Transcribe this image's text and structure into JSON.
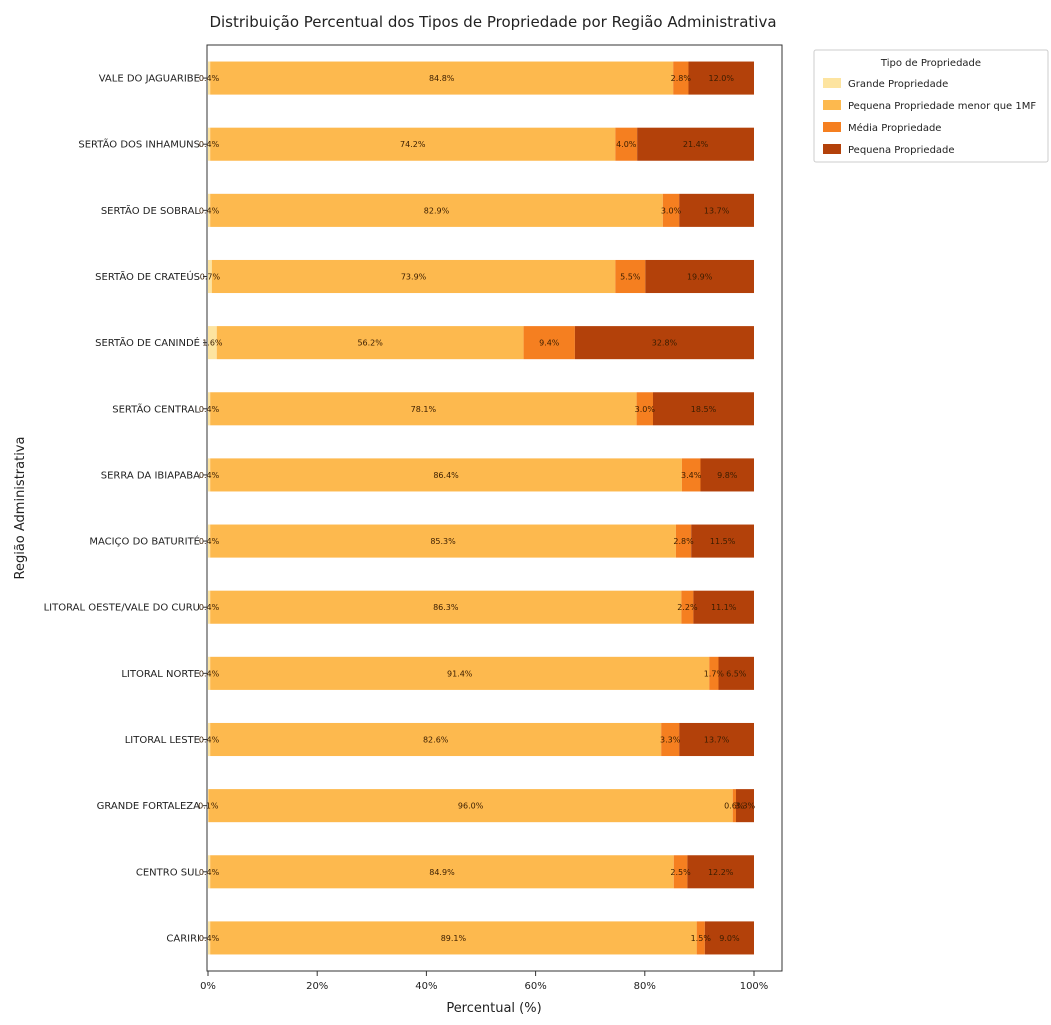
{
  "chart_data": {
    "type": "bar",
    "orientation": "horizontal",
    "stacked": true,
    "title": "Distribuição Percentual dos Tipos de Propriedade por Região Administrativa",
    "xlabel": "Percentual (%)",
    "ylabel": "Região Administrativa",
    "xlim": [
      0,
      100
    ],
    "xticks": [
      "0%",
      "20%",
      "40%",
      "60%",
      "80%",
      "100%"
    ],
    "grid": false,
    "legend": {
      "title": "Tipo de Propriedade",
      "placement": "outside-top-right"
    },
    "categories": [
      "VALE DO JAGUARIBE",
      "SERTÃO DOS INHAMUNS",
      "SERTÃO DE SOBRAL",
      "SERTÃO DE CRATEÚS",
      "SERTÃO DE CANINDÉ",
      "SERTÃO CENTRAL",
      "SERRA DA IBIAPABA",
      "MACIÇO DO BATURITÉ",
      "LITORAL OESTE/VALE DO CURU",
      "LITORAL NORTE",
      "LITORAL LESTE",
      "GRANDE FORTALEZA",
      "CENTRO SUL",
      "CARIRI"
    ],
    "series": [
      {
        "name": "Grande Propriedade",
        "color": "#fde4a0",
        "values": [
          0.4,
          0.4,
          0.4,
          0.7,
          1.6,
          0.4,
          0.4,
          0.4,
          0.4,
          0.4,
          0.4,
          0.1,
          0.4,
          0.4
        ],
        "labels": [
          "0.4%",
          "0.4%",
          "0.4%",
          "0.7%",
          "1.6%",
          "0.4%",
          "0.4%",
          "0.4%",
          "0.4%",
          "0.4%",
          "0.4%",
          "0.1%",
          "0.4%",
          "0.4%"
        ]
      },
      {
        "name": "Pequena Propriedade menor que 1MF",
        "color": "#fdb94e",
        "values": [
          84.8,
          74.2,
          82.9,
          73.9,
          56.2,
          78.1,
          86.4,
          85.3,
          86.3,
          91.4,
          82.6,
          96.0,
          84.9,
          89.1
        ],
        "labels": [
          "84.8%",
          "74.2%",
          "82.9%",
          "73.9%",
          "56.2%",
          "78.1%",
          "86.4%",
          "85.3%",
          "86.3%",
          "91.4%",
          "82.6%",
          "96.0%",
          "84.9%",
          "89.1%"
        ]
      },
      {
        "name": "Média Propriedade",
        "color": "#f57f20",
        "values": [
          2.8,
          4.0,
          3.0,
          5.5,
          9.4,
          3.0,
          3.4,
          2.8,
          2.2,
          1.7,
          3.3,
          0.6,
          2.5,
          1.5
        ],
        "labels": [
          "2.8%",
          "4.0%",
          "3.0%",
          "5.5%",
          "9.4%",
          "3.0%",
          "3.4%",
          "2.8%",
          "2.2%",
          "1.7%",
          "3.3%",
          "0.6%",
          "2.5%",
          "1.5%"
        ]
      },
      {
        "name": "Pequena Propriedade",
        "color": "#b3410a",
        "values": [
          12.0,
          21.4,
          13.7,
          19.9,
          32.8,
          18.5,
          9.8,
          11.5,
          11.1,
          6.5,
          13.7,
          3.3,
          12.2,
          9.0
        ],
        "labels": [
          "12.0%",
          "21.4%",
          "13.7%",
          "19.9%",
          "32.8%",
          "18.5%",
          "9.8%",
          "11.5%",
          "11.1%",
          "6.5%",
          "13.7%",
          "3.3%",
          "12.2%",
          "9.0%"
        ]
      }
    ]
  }
}
